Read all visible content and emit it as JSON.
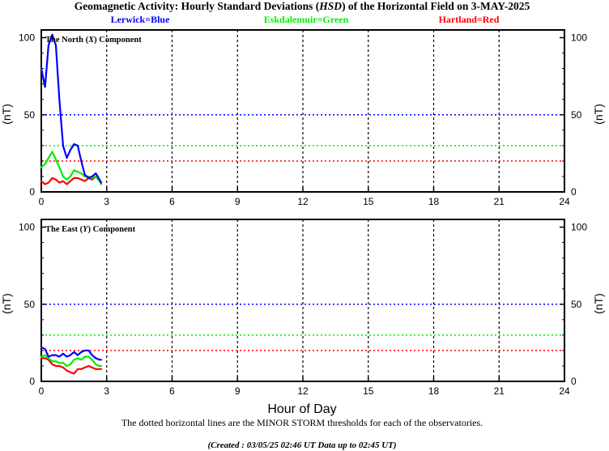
{
  "title": "Geomagnetic Activity: Hourly Standard Deviations (HSD) of the Horizontal Field on 3-MAY-2025",
  "title_parts": {
    "pre": "Geomagnetic Activity: Hourly Standard Deviations (",
    "italic": "HSD",
    "post": ") of the Horizontal Field on 3-MAY-2025"
  },
  "legend": {
    "lerwick": "Lerwick=Blue",
    "eskdalemuir": "Eskdalemuir=Green",
    "hartland": "Hartland=Red"
  },
  "colors": {
    "lerwick": "#0000ff",
    "eskdalemuir": "#00ee00",
    "hartland": "#ff0000",
    "frame": "#000000",
    "background": "#ffffff"
  },
  "panels": {
    "north": {
      "label_pre": "The North (",
      "label_italic": "X",
      "label_post": ") Component",
      "ylabel": "(nT)"
    },
    "east": {
      "label_pre": "The East (",
      "label_italic": "Y",
      "label_post": ") Component",
      "ylabel": "(nT)"
    }
  },
  "xlabel": "Hour of Day",
  "footnote": "The dotted horizontal lines are the MINOR STORM thresholds for each of the observatories.",
  "created_note": "(Created : 03/05/25 02:46 UT  Data up to 02:45 UT)",
  "chart_data": [
    {
      "type": "line",
      "panel": "north",
      "title": "The North (X) Component",
      "ylabel": "(nT)",
      "xlim": [
        0,
        24
      ],
      "ylim": [
        0,
        105
      ],
      "x_ticks": [
        0,
        3,
        6,
        9,
        12,
        15,
        18,
        21,
        24
      ],
      "y_ticks": [
        0,
        50,
        100
      ],
      "grid_vertical_dotted": [
        3,
        6,
        9,
        12,
        15,
        18,
        21
      ],
      "thresholds": [
        {
          "station": "lerwick",
          "value": 50
        },
        {
          "station": "eskdalemuir",
          "value": 30
        },
        {
          "station": "hartland",
          "value": 20
        }
      ],
      "series": [
        {
          "name": "Lerwick",
          "color_key": "lerwick",
          "x": [
            0.0,
            0.17,
            0.33,
            0.5,
            0.67,
            0.83,
            1.0,
            1.17,
            1.33,
            1.5,
            1.67,
            1.83,
            2.0,
            2.17,
            2.33,
            2.5,
            2.67,
            2.75
          ],
          "y": [
            80,
            68,
            95,
            102,
            95,
            60,
            30,
            22,
            27,
            31,
            30,
            20,
            11,
            9,
            10,
            12,
            8,
            6
          ]
        },
        {
          "name": "Eskdalemuir",
          "color_key": "eskdalemuir",
          "x": [
            0.0,
            0.17,
            0.33,
            0.5,
            0.67,
            0.83,
            1.0,
            1.17,
            1.33,
            1.5,
            1.67,
            1.83,
            2.0,
            2.17,
            2.33,
            2.5,
            2.67,
            2.75
          ],
          "y": [
            16,
            18,
            22,
            26,
            21,
            16,
            10,
            8,
            10,
            14,
            13,
            12,
            10,
            10,
            9,
            10,
            7,
            5
          ]
        },
        {
          "name": "Hartland",
          "color_key": "hartland",
          "x": [
            0.0,
            0.17,
            0.33,
            0.5,
            0.67,
            0.83,
            1.0,
            1.17,
            1.33,
            1.5,
            1.67,
            1.83,
            2.0,
            2.17,
            2.33,
            2.5,
            2.67,
            2.75
          ],
          "y": [
            7,
            5,
            6,
            9,
            8,
            6,
            7,
            5,
            7,
            9,
            9,
            8,
            7,
            9,
            8,
            10,
            7,
            6
          ]
        }
      ]
    },
    {
      "type": "line",
      "panel": "east",
      "title": "The East (Y) Component",
      "ylabel": "(nT)",
      "xlabel": "Hour of Day",
      "xlim": [
        0,
        24
      ],
      "ylim": [
        0,
        105
      ],
      "x_ticks": [
        0,
        3,
        6,
        9,
        12,
        15,
        18,
        21,
        24
      ],
      "y_ticks": [
        0,
        50,
        100
      ],
      "grid_vertical_dotted": [
        3,
        6,
        9,
        12,
        15,
        18,
        21
      ],
      "thresholds": [
        {
          "station": "lerwick",
          "value": 50
        },
        {
          "station": "eskdalemuir",
          "value": 30
        },
        {
          "station": "hartland",
          "value": 20
        }
      ],
      "series": [
        {
          "name": "Lerwick",
          "color_key": "lerwick",
          "x": [
            0.0,
            0.17,
            0.33,
            0.5,
            0.67,
            0.83,
            1.0,
            1.17,
            1.33,
            1.5,
            1.67,
            1.83,
            2.0,
            2.17,
            2.33,
            2.5,
            2.67,
            2.75
          ],
          "y": [
            22,
            21,
            16,
            17,
            17,
            16,
            18,
            16,
            17,
            19,
            17,
            19,
            20,
            20,
            17,
            15,
            14,
            14
          ]
        },
        {
          "name": "Eskdalemuir",
          "color_key": "eskdalemuir",
          "x": [
            0.0,
            0.17,
            0.33,
            0.5,
            0.67,
            0.83,
            1.0,
            1.17,
            1.33,
            1.5,
            1.67,
            1.83,
            2.0,
            2.17,
            2.33,
            2.5,
            2.67,
            2.75
          ],
          "y": [
            16,
            17,
            15,
            13,
            13,
            12,
            12,
            10,
            11,
            14,
            15,
            14,
            16,
            16,
            14,
            11,
            10,
            10
          ]
        },
        {
          "name": "Hartland",
          "color_key": "hartland",
          "x": [
            0.0,
            0.17,
            0.33,
            0.5,
            0.67,
            0.83,
            1.0,
            1.17,
            1.33,
            1.5,
            1.67,
            1.83,
            2.0,
            2.17,
            2.33,
            2.5,
            2.67,
            2.75
          ],
          "y": [
            15,
            15,
            14,
            11,
            10,
            10,
            9,
            7,
            6,
            5,
            8,
            8,
            9,
            10,
            9,
            8,
            8,
            8
          ]
        }
      ]
    }
  ]
}
